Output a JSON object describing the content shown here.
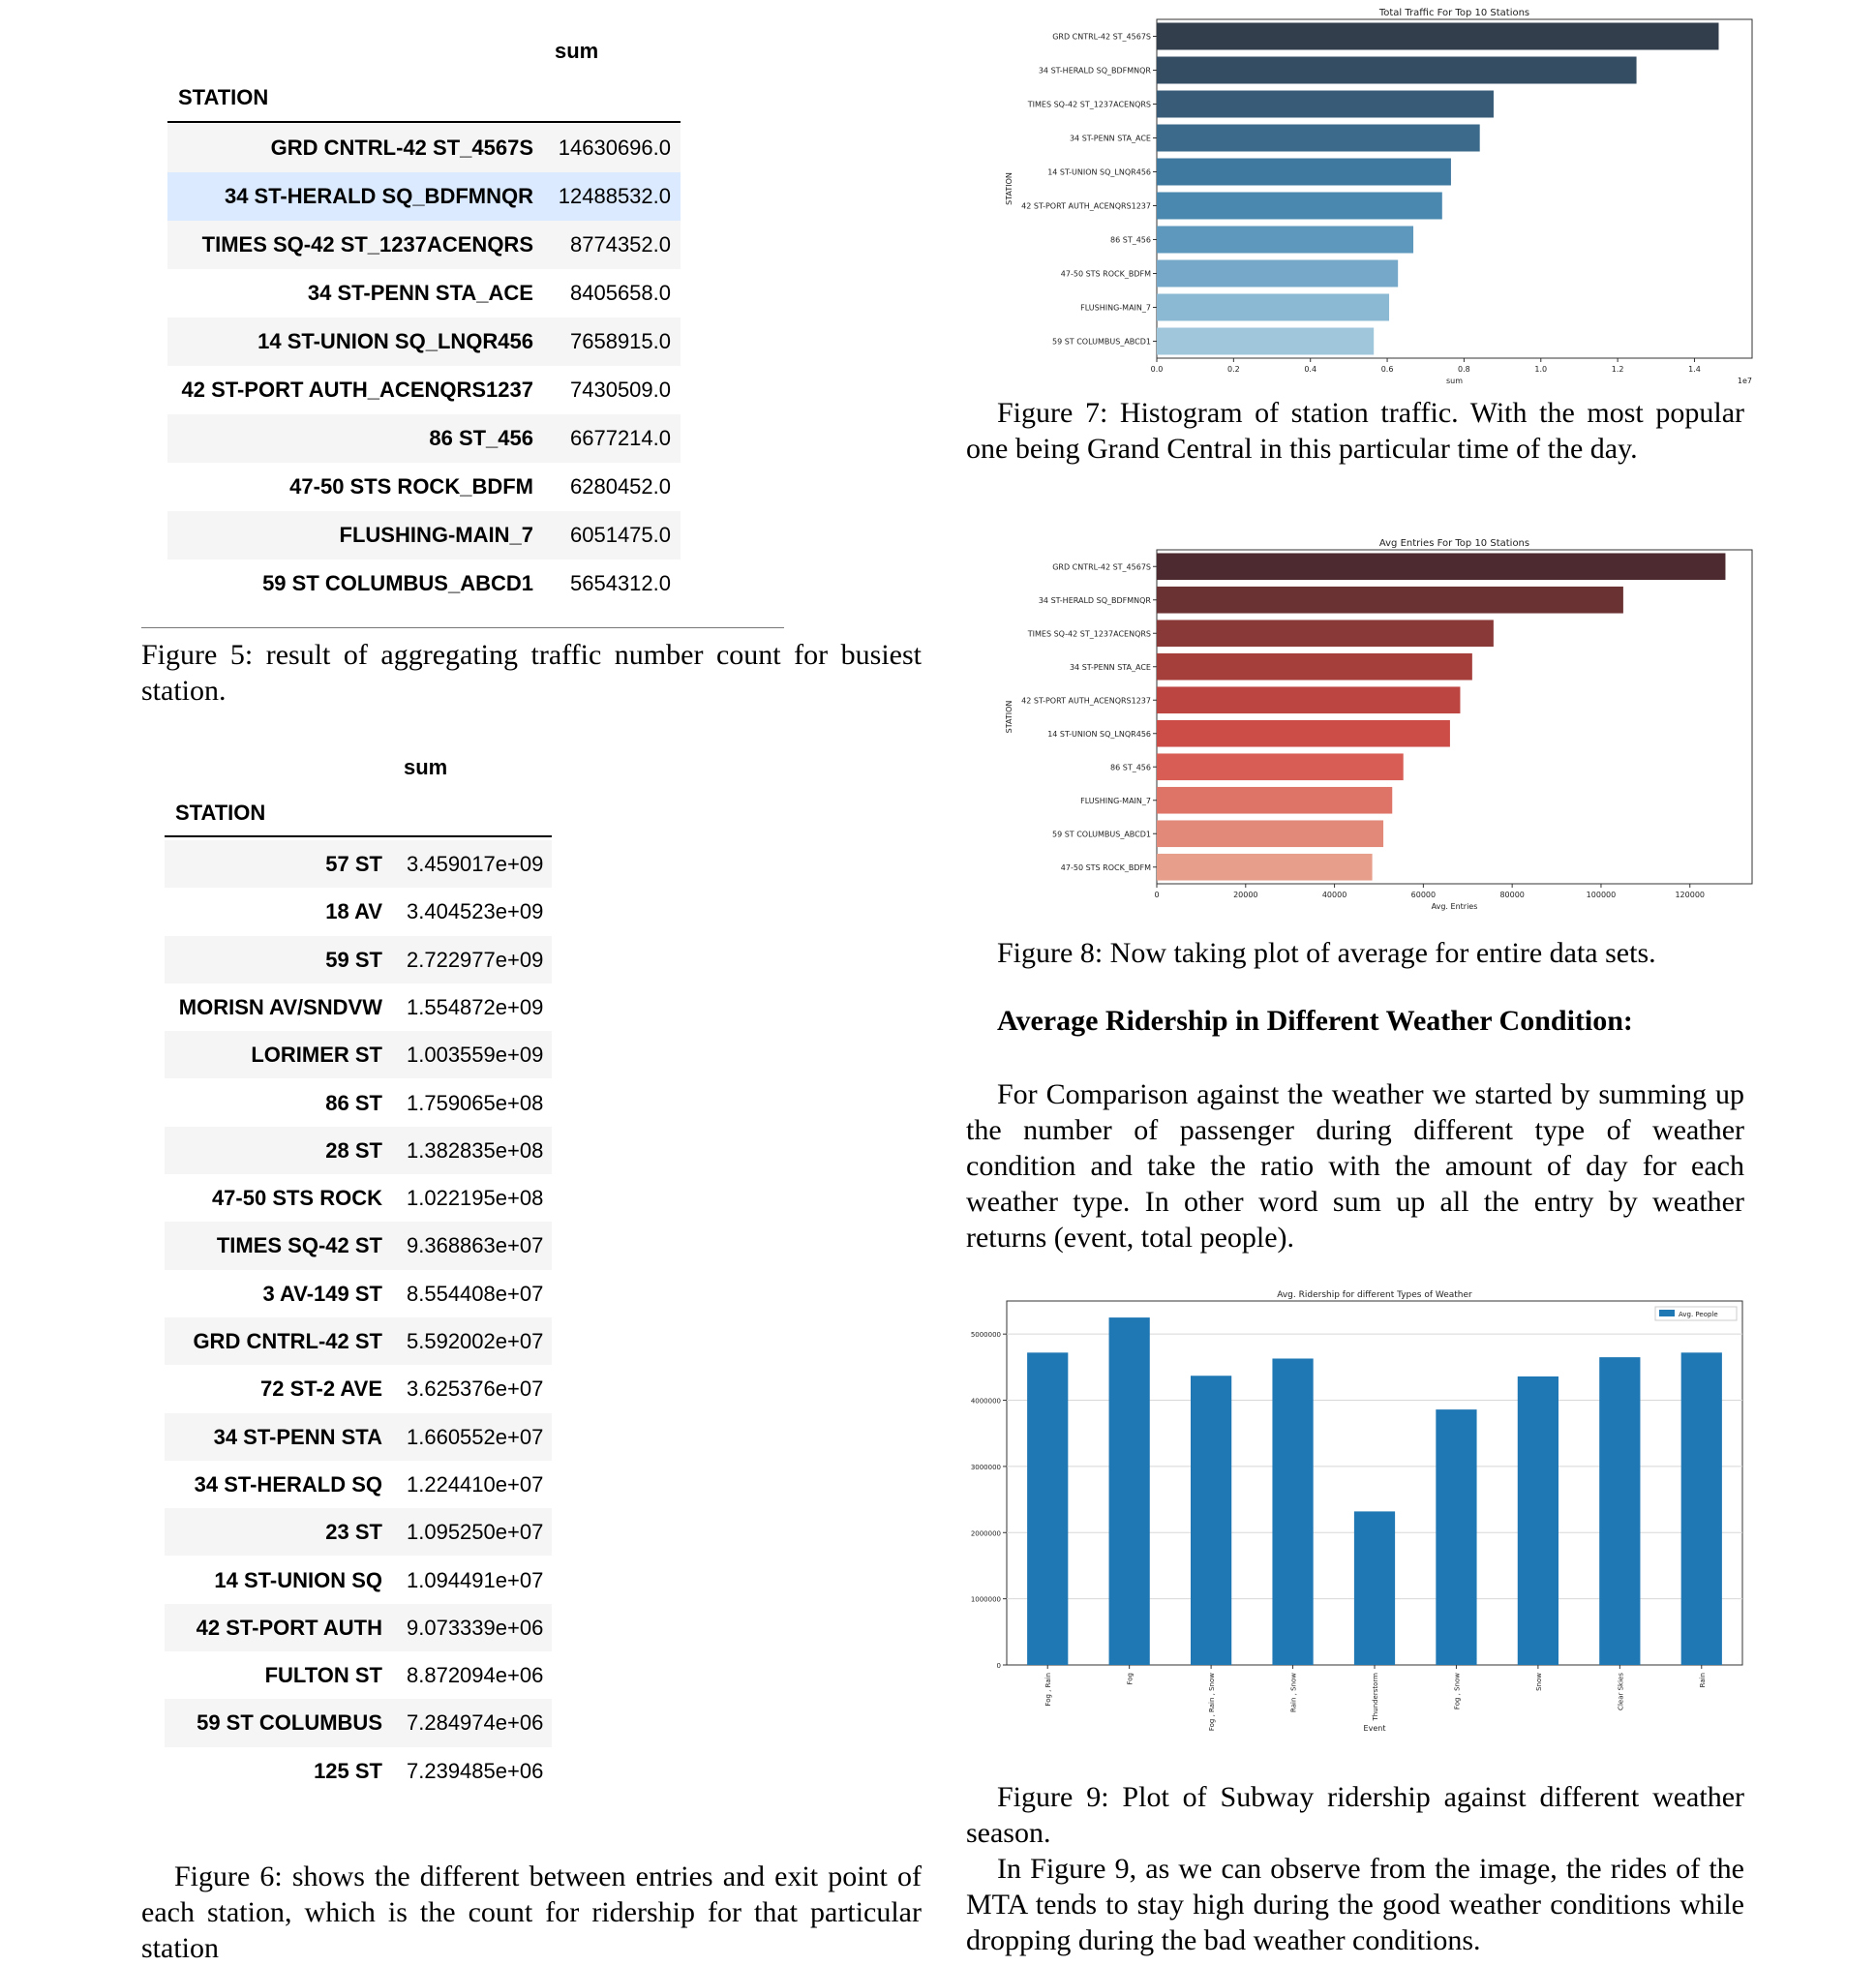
{
  "table5": {
    "col": "sum",
    "index_name": "STATION",
    "rows": [
      {
        "station": "GRD CNTRL-42 ST_4567S",
        "value": "14630696.0"
      },
      {
        "station": "34 ST-HERALD SQ_BDFMNQR",
        "value": "12488532.0"
      },
      {
        "station": "TIMES SQ-42 ST_1237ACENQRS",
        "value": "8774352.0"
      },
      {
        "station": "34 ST-PENN STA_ACE",
        "value": "8405658.0"
      },
      {
        "station": "14 ST-UNION SQ_LNQR456",
        "value": "7658915.0"
      },
      {
        "station": "42 ST-PORT AUTH_ACENQRS1237",
        "value": "7430509.0"
      },
      {
        "station": "86 ST_456",
        "value": "6677214.0"
      },
      {
        "station": "47-50 STS ROCK_BDFM",
        "value": "6280452.0"
      },
      {
        "station": "FLUSHING-MAIN_7",
        "value": "6051475.0"
      },
      {
        "station": "59 ST COLUMBUS_ABCD1",
        "value": "5654312.0"
      }
    ]
  },
  "caption5": "Figure 5: result of aggregating traffic number count for busiest station.",
  "table6": {
    "col": "sum",
    "index_name": "STATION",
    "rows": [
      {
        "station": "57 ST",
        "value": "3.459017e+09"
      },
      {
        "station": "18 AV",
        "value": "3.404523e+09"
      },
      {
        "station": "59 ST",
        "value": "2.722977e+09"
      },
      {
        "station": "MORISN AV/SNDVW",
        "value": "1.554872e+09"
      },
      {
        "station": "LORIMER ST",
        "value": "1.003559e+09"
      },
      {
        "station": "86 ST",
        "value": "1.759065e+08"
      },
      {
        "station": "28 ST",
        "value": "1.382835e+08"
      },
      {
        "station": "47-50 STS ROCK",
        "value": "1.022195e+08"
      },
      {
        "station": "TIMES SQ-42 ST",
        "value": "9.368863e+07"
      },
      {
        "station": "3 AV-149 ST",
        "value": "8.554408e+07"
      },
      {
        "station": "GRD CNTRL-42 ST",
        "value": "5.592002e+07"
      },
      {
        "station": "72 ST-2 AVE",
        "value": "3.625376e+07"
      },
      {
        "station": "34 ST-PENN STA",
        "value": "1.660552e+07"
      },
      {
        "station": "34 ST-HERALD SQ",
        "value": "1.224410e+07"
      },
      {
        "station": "23 ST",
        "value": "1.095250e+07"
      },
      {
        "station": "14 ST-UNION SQ",
        "value": "1.094491e+07"
      },
      {
        "station": "42 ST-PORT AUTH",
        "value": "9.073339e+06"
      },
      {
        "station": "FULTON ST",
        "value": "8.872094e+06"
      },
      {
        "station": "59 ST COLUMBUS",
        "value": "7.284974e+06"
      },
      {
        "station": "125 ST",
        "value": "7.239485e+06"
      }
    ]
  },
  "caption6": "Figure 6: shows the different between entries and exit point of each station, which is the count for ridership for that particular station",
  "caption7": "Figure 7: Histogram of station traffic. With the most popular one being Grand Central in this particular time of the day.",
  "caption8": "Figure 8: Now taking plot of average for entire data sets.",
  "heading": "Average Ridership in Different Weather Condition:",
  "paragraph": "For Comparison against the weather we started by summing up the number of passenger during different type of weather condition and take the ratio with the amount of day for each weather type. In other word sum up all the entry by weather returns (event, total people).",
  "caption9": "Figure 9: Plot of Subway ridership against different weather season.",
  "paragraph2": "In Figure 9, as we can observe from the image, the rides of the MTA tends to stay high during the good weather conditions while dropping during the bad weather conditions.",
  "chart_data": [
    {
      "type": "bar",
      "orientation": "horizontal",
      "title": "Total Traffic For Top 10 Stations",
      "xlabel": "sum",
      "ylabel": "STATION",
      "x_multiplier_label": "1e7",
      "xlim": [
        0,
        1.55
      ],
      "xticks": [
        "0.0",
        "0.2",
        "0.4",
        "0.6",
        "0.8",
        "1.0",
        "1.2",
        "1.4"
      ],
      "categories": [
        "GRD CNTRL-42 ST_4567S",
        "34 ST-HERALD SQ_BDFMNQR",
        "TIMES SQ-42 ST_1237ACENQRS",
        "34 ST-PENN STA_ACE",
        "14 ST-UNION SQ_LNQR456",
        "42 ST-PORT AUTH_ACENQRS1237",
        "86 ST_456",
        "47-50 STS ROCK_BDFM",
        "FLUSHING-MAIN_7",
        "59 ST COLUMBUS_ABCD1"
      ],
      "values": [
        1.463,
        1.249,
        0.877,
        0.841,
        0.766,
        0.743,
        0.668,
        0.628,
        0.605,
        0.565
      ],
      "colors": [
        "#323e4c",
        "#354d63",
        "#385c77",
        "#3b6a8b",
        "#40799f",
        "#4a88b0",
        "#5f98bd",
        "#76a8c9",
        "#8bb8d3",
        "#a0c6dc"
      ]
    },
    {
      "type": "bar",
      "orientation": "horizontal",
      "title": "Avg Entries For Top 10 Stations",
      "xlabel": "Avg. Entries",
      "ylabel": "STATION",
      "xlim": [
        0,
        134000
      ],
      "xticks": [
        "0",
        "20000",
        "40000",
        "60000",
        "80000",
        "100000",
        "120000"
      ],
      "categories": [
        "GRD CNTRL-42 ST_4567S",
        "34 ST-HERALD SQ_BDFMNQR",
        "TIMES SQ-42 ST_1237ACENQRS",
        "34 ST-PENN STA_ACE",
        "42 ST-PORT AUTH_ACENQRS1237",
        "14 ST-UNION SQ_LNQR456",
        "86 ST_456",
        "FLUSHING-MAIN_7",
        "59 ST COLUMBUS_ABCD1",
        "47-50 STS ROCK_BDFM"
      ],
      "values": [
        128000,
        105000,
        75800,
        71000,
        68300,
        66000,
        55500,
        53000,
        51000,
        48500
      ],
      "colors": [
        "#4d2a2f",
        "#6b3234",
        "#893a38",
        "#a53f3c",
        "#bc4541",
        "#cc4d47",
        "#d75d55",
        "#de7467",
        "#e2897a",
        "#e79f8c"
      ]
    },
    {
      "type": "bar",
      "title": "Avg. Ridership for different Types of Weather",
      "xlabel": "Event",
      "ylabel": "",
      "legend": "Avg. People",
      "legend_position": "top-right",
      "grid": true,
      "ylim": [
        0,
        5500000
      ],
      "yticks": [
        "0",
        "1000000",
        "2000000",
        "3000000",
        "4000000",
        "5000000"
      ],
      "categories": [
        "Fog , Rain",
        "Fog",
        "Fog , Rain , Snow",
        "Rain , Snow",
        "Thunderstorm",
        "Fog , Snow",
        "Snow",
        "Clear Skies",
        "Rain"
      ],
      "values": [
        4720000,
        5250000,
        4370000,
        4630000,
        2320000,
        3860000,
        4360000,
        4650000,
        4720000
      ],
      "color": "#1f77b4"
    }
  ]
}
